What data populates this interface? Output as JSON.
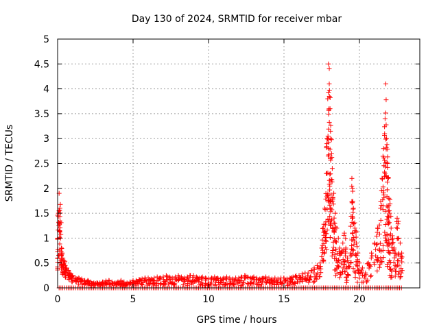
{
  "chart_data": {
    "type": "scatter",
    "title": "Day 130 of 2024, SRMTID for receiver mbar",
    "xlabel": "GPS time / hours",
    "ylabel": "SRMTID / TECUs",
    "xlim": [
      0,
      24
    ],
    "ylim": [
      0,
      5
    ],
    "xticks": [
      0,
      5,
      10,
      15,
      20
    ],
    "xtick_labels": [
      "0",
      "5",
      "10",
      "15",
      "20"
    ],
    "yticks": [
      0,
      0.5,
      1,
      1.5,
      2,
      2.5,
      3,
      3.5,
      4,
      4.5,
      5
    ],
    "ytick_labels": [
      "0",
      "0.5",
      "1",
      "1.5",
      "2",
      "2.5",
      "3",
      "3.5",
      "4",
      "4.5",
      "5"
    ],
    "grid": true,
    "marker": "+",
    "series_color": "#ff0000",
    "series": [
      {
        "name": "SRMTID",
        "x": [
          0.0,
          0.05,
          0.1,
          0.15,
          0.2,
          0.25,
          0.3,
          0.35,
          0.4,
          0.45,
          0.5,
          0.6,
          0.7,
          0.8,
          0.9,
          1.0,
          1.2,
          1.4,
          1.6,
          1.8,
          2.0,
          2.2,
          2.4,
          2.6,
          2.8,
          3.0,
          3.2,
          3.4,
          3.6,
          3.8,
          4.0,
          4.2,
          4.4,
          4.6,
          4.8,
          5.0,
          5.2,
          5.4,
          5.6,
          5.8,
          6.0,
          6.2,
          6.4,
          6.6,
          6.8,
          7.0,
          7.2,
          7.4,
          7.6,
          7.8,
          8.0,
          8.2,
          8.4,
          8.6,
          8.8,
          9.0,
          9.2,
          9.4,
          9.6,
          9.8,
          10.0,
          10.2,
          10.4,
          10.6,
          10.8,
          11.0,
          11.2,
          11.4,
          11.6,
          11.8,
          12.0,
          12.2,
          12.4,
          12.6,
          12.8,
          13.0,
          13.2,
          13.4,
          13.6,
          13.8,
          14.0,
          14.2,
          14.4,
          14.6,
          14.8,
          15.0,
          15.2,
          15.4,
          15.6,
          15.8,
          16.0,
          16.2,
          16.4,
          16.6,
          16.8,
          17.0,
          17.2,
          17.4,
          17.5,
          17.6,
          17.7,
          17.8,
          17.85,
          17.9,
          17.95,
          18.0,
          18.05,
          18.1,
          18.15,
          18.2,
          18.3,
          18.4,
          18.5,
          18.6,
          18.7,
          18.8,
          18.9,
          19.0,
          19.1,
          19.2,
          19.3,
          19.4,
          19.5,
          19.55,
          19.6,
          19.7,
          19.8,
          19.9,
          20.0,
          20.2,
          20.4,
          20.6,
          20.8,
          21.0,
          21.2,
          21.4,
          21.5,
          21.6,
          21.7,
          21.75,
          21.8,
          21.85,
          21.9,
          21.95,
          22.0,
          22.1,
          22.2,
          22.3,
          22.4,
          22.5,
          22.6,
          22.7,
          22.8
        ],
        "y": [
          0.6,
          1.5,
          1.9,
          1.6,
          1.0,
          0.8,
          0.7,
          0.6,
          0.55,
          0.5,
          0.45,
          0.4,
          0.35,
          0.3,
          0.25,
          0.25,
          0.2,
          0.2,
          0.18,
          0.15,
          0.15,
          0.12,
          0.1,
          0.1,
          0.1,
          0.12,
          0.14,
          0.15,
          0.12,
          0.1,
          0.12,
          0.15,
          0.12,
          0.1,
          0.12,
          0.15,
          0.15,
          0.17,
          0.18,
          0.2,
          0.2,
          0.18,
          0.2,
          0.22,
          0.2,
          0.22,
          0.25,
          0.22,
          0.2,
          0.22,
          0.25,
          0.22,
          0.2,
          0.22,
          0.25,
          0.25,
          0.22,
          0.2,
          0.22,
          0.2,
          0.18,
          0.2,
          0.22,
          0.2,
          0.18,
          0.2,
          0.22,
          0.2,
          0.18,
          0.2,
          0.2,
          0.22,
          0.25,
          0.22,
          0.2,
          0.22,
          0.2,
          0.18,
          0.2,
          0.22,
          0.2,
          0.18,
          0.2,
          0.18,
          0.2,
          0.2,
          0.18,
          0.2,
          0.22,
          0.25,
          0.25,
          0.28,
          0.3,
          0.3,
          0.35,
          0.4,
          0.45,
          0.5,
          0.8,
          1.2,
          1.6,
          2.3,
          3.0,
          3.8,
          4.5,
          4.1,
          3.6,
          3.0,
          2.7,
          2.4,
          1.9,
          1.5,
          1.2,
          1.0,
          0.8,
          0.7,
          0.9,
          1.1,
          0.8,
          0.6,
          0.5,
          0.7,
          2.2,
          2.0,
          1.6,
          1.2,
          0.9,
          0.7,
          0.5,
          0.4,
          0.3,
          0.5,
          0.7,
          0.9,
          1.2,
          1.6,
          2.2,
          2.8,
          3.4,
          4.1,
          3.0,
          2.5,
          2.2,
          1.8,
          1.5,
          1.2,
          1.0,
          0.8,
          0.7,
          1.4,
          1.0,
          0.9,
          0.7
        ],
        "y_low": [
          0.3,
          0.5,
          0.6,
          0.5,
          0.4,
          0.3,
          0.3,
          0.3,
          0.25,
          0.25,
          0.2,
          0.2,
          0.15,
          0.12,
          0.1,
          0.1,
          0.08,
          0.07,
          0.06,
          0.05,
          0.05,
          0.05,
          0.05,
          0.05,
          0.05,
          0.05,
          0.05,
          0.05,
          0.05,
          0.05,
          0.05,
          0.05,
          0.05,
          0.05,
          0.05,
          0.05,
          0.05,
          0.05,
          0.05,
          0.05,
          0.05,
          0.05,
          0.05,
          0.05,
          0.05,
          0.05,
          0.05,
          0.05,
          0.05,
          0.05,
          0.05,
          0.05,
          0.05,
          0.05,
          0.05,
          0.05,
          0.05,
          0.05,
          0.05,
          0.05,
          0.05,
          0.05,
          0.05,
          0.05,
          0.05,
          0.05,
          0.05,
          0.05,
          0.05,
          0.05,
          0.05,
          0.05,
          0.05,
          0.05,
          0.05,
          0.05,
          0.05,
          0.05,
          0.05,
          0.05,
          0.05,
          0.05,
          0.05,
          0.05,
          0.05,
          0.05,
          0.05,
          0.05,
          0.05,
          0.05,
          0.1,
          0.1,
          0.1,
          0.1,
          0.1,
          0.1,
          0.15,
          0.2,
          0.3,
          0.4,
          0.5,
          0.6,
          0.8,
          1.0,
          1.2,
          1.4,
          1.2,
          1.0,
          0.8,
          0.6,
          0.5,
          0.3,
          0.2,
          0.2,
          0.1,
          0.1,
          0.2,
          0.3,
          0.2,
          0.1,
          0.1,
          0.2,
          0.5,
          0.4,
          0.3,
          0.2,
          0.2,
          0.1,
          0.1,
          0.1,
          0.1,
          0.1,
          0.2,
          0.2,
          0.3,
          0.4,
          0.5,
          0.6,
          0.7,
          0.8,
          0.6,
          0.5,
          0.4,
          0.3,
          0.3,
          0.2,
          0.2,
          0.2,
          0.2,
          0.3,
          0.2,
          0.2,
          0.2
        ]
      }
    ],
    "baseline_marks_y": 0,
    "baseline_x_range": [
      0.1,
      22.8
    ]
  }
}
